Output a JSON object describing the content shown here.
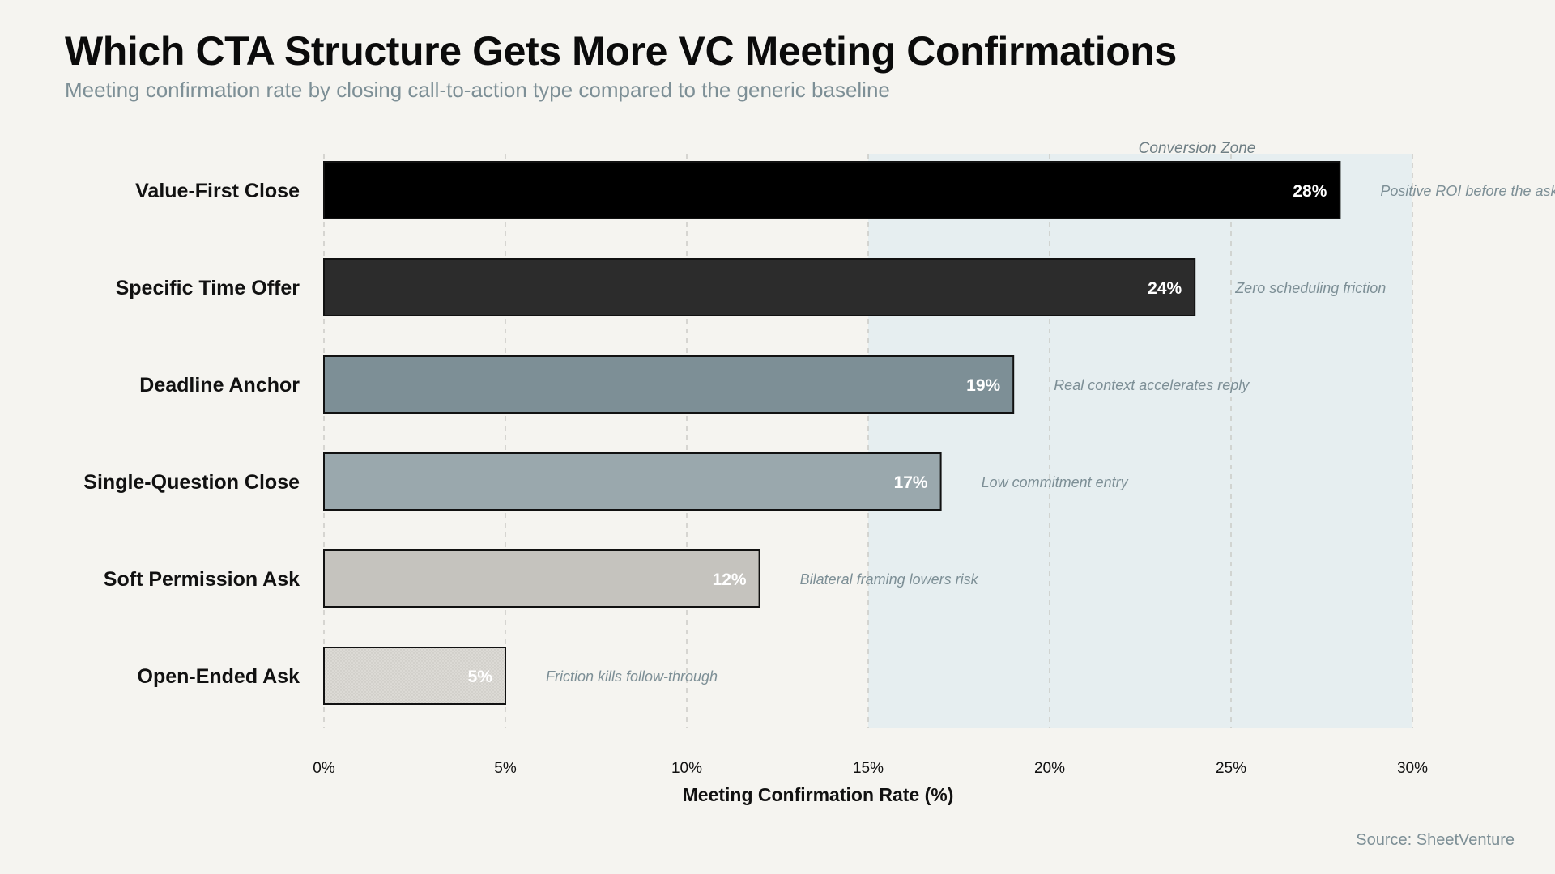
{
  "chart_data": {
    "type": "bar",
    "orientation": "horizontal",
    "title": "Which CTA Structure Gets More VC Meeting Confirmations",
    "subtitle": "Meeting confirmation rate by closing call-to-action type compared to the generic baseline",
    "xlabel": "Meeting Confirmation Rate (%)",
    "xlim": [
      0,
      30
    ],
    "xticks": [
      0,
      5,
      10,
      15,
      20,
      25,
      30
    ],
    "tick_suffix": "%",
    "grid": true,
    "categories": [
      "Value-First Close",
      "Specific Time Offer",
      "Deadline Anchor",
      "Single-Question Close",
      "Soft Permission Ask",
      "Open-Ended Ask"
    ],
    "values": [
      28,
      24,
      19,
      17,
      12,
      5
    ],
    "value_labels": [
      "28%",
      "24%",
      "19%",
      "17%",
      "12%",
      "5%"
    ],
    "annotations": [
      "Positive ROI before the ask",
      "Zero scheduling friction",
      "Real context accelerates reply",
      "Low commitment entry",
      "Bilateral framing lowers risk",
      "Friction kills follow-through"
    ],
    "colors": [
      "#000000",
      "#2c2c2c",
      "#7d8f96",
      "#9aa8ad",
      "#c5c3be",
      "#dcdad5"
    ],
    "zone": {
      "label": "Conversion Zone",
      "start": 15,
      "end": 30,
      "color": "#e6eef0"
    },
    "source": "Source: SheetVenture"
  }
}
